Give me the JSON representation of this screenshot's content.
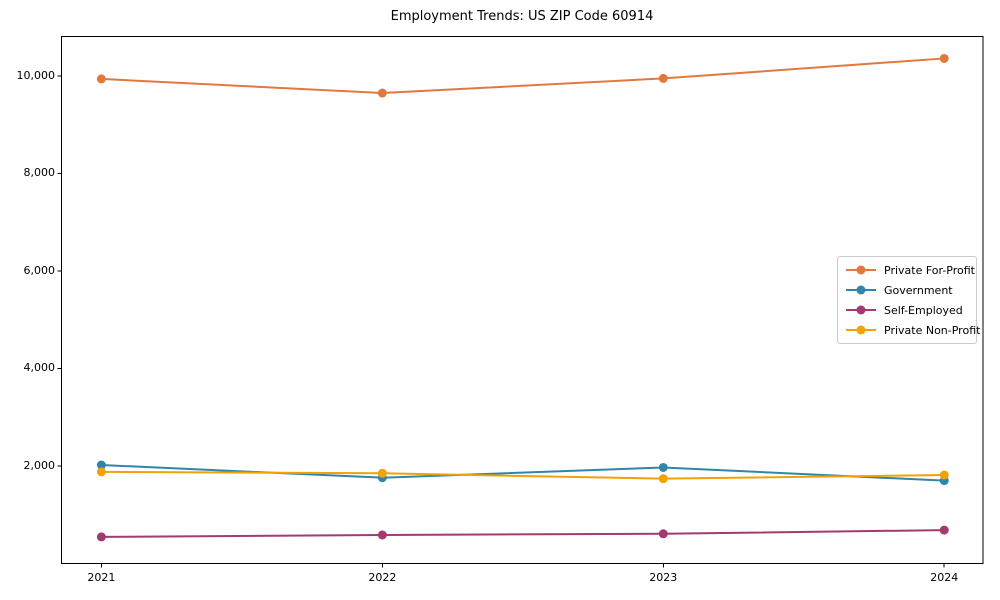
{
  "title": "Employment Trends: US ZIP Code 60914",
  "chart_data": {
    "type": "line",
    "title": "Employment Trends: US ZIP Code 60914",
    "xlabel": "",
    "ylabel": "",
    "x": [
      2021,
      2022,
      2023,
      2024
    ],
    "x_tick_labels": [
      "2021",
      "2022",
      "2023",
      "2024"
    ],
    "y_ticks": [
      2000,
      4000,
      6000,
      8000,
      10000
    ],
    "y_tick_labels": [
      "2,000",
      "4,000",
      "6,000",
      "8,000",
      "10,000"
    ],
    "xlim": [
      2020.858,
      2024.138
    ],
    "ylim": [
      0,
      10810
    ],
    "grid": false,
    "legend_position": "center right",
    "series": [
      {
        "name": "Private For-Profit",
        "color": "#E1793E",
        "values": [
          9940,
          9650,
          9950,
          10360
        ]
      },
      {
        "name": "Government",
        "color": "#2E86AB",
        "values": [
          2020,
          1760,
          1970,
          1700
        ]
      },
      {
        "name": "Self-Employed",
        "color": "#A23B72",
        "values": [
          545,
          585,
          610,
          685
        ]
      },
      {
        "name": "Private Non-Profit",
        "color": "#F1A208",
        "values": [
          1880,
          1850,
          1740,
          1815
        ]
      }
    ],
    "axis_color": "#000000"
  }
}
